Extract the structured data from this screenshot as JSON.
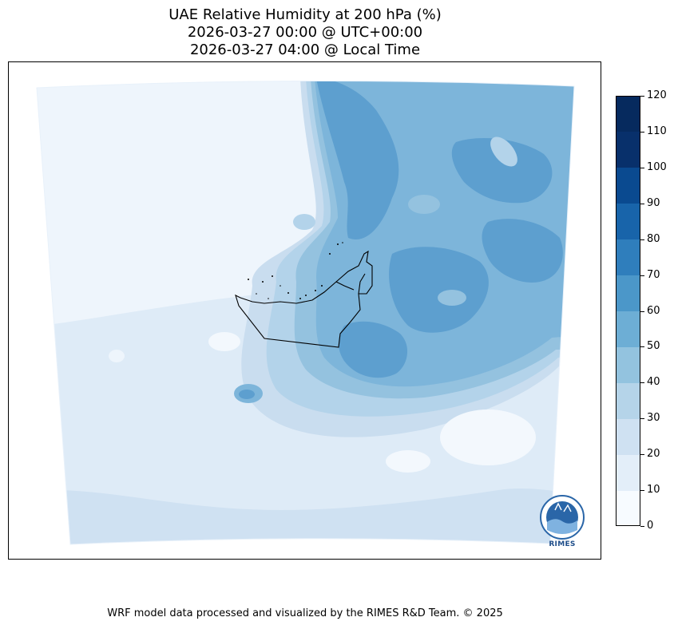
{
  "title": {
    "line1": "UAE Relative Humidity at 200 hPa (%)",
    "line2": "2026-03-27 00:00 @ UTC+00:00",
    "line3": "2026-03-27 04:00 @ Local Time"
  },
  "colorbar": {
    "levels": [
      0,
      10,
      20,
      30,
      40,
      50,
      60,
      70,
      80,
      90,
      100,
      110,
      120
    ],
    "tick_labels": [
      "0",
      "10",
      "20",
      "30",
      "40",
      "50",
      "60",
      "70",
      "80",
      "90",
      "100",
      "110",
      "120"
    ],
    "colors": [
      "#f7fbff",
      "#e3eef9",
      "#cfe1f2",
      "#b5d4e9",
      "#93c3df",
      "#6daed5",
      "#4b97c9",
      "#2f7ebc",
      "#1864aa",
      "#0a4a90",
      "#08306b",
      "#062a5e"
    ]
  },
  "logo": {
    "text": "RIMES"
  },
  "footer": {
    "text": "WRF model data processed and visualized by the RIMES R&D Team. © 2025"
  }
}
